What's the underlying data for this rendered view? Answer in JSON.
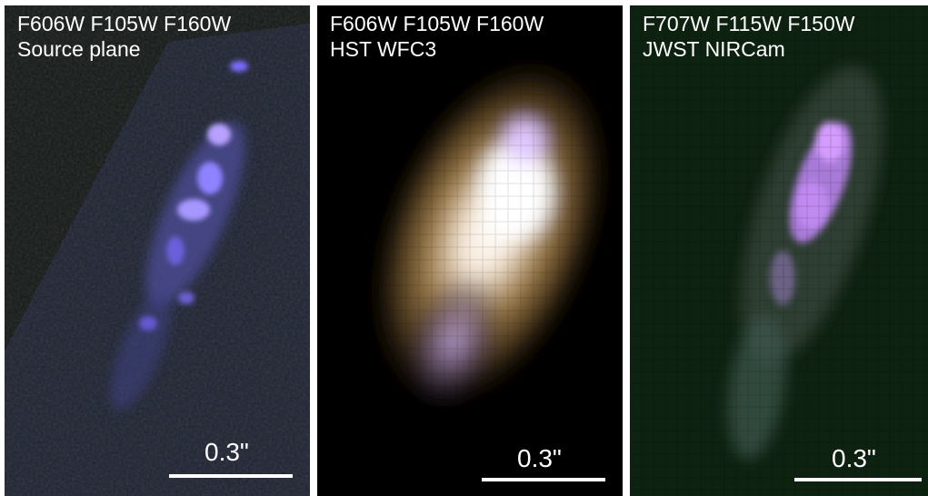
{
  "panels": [
    {
      "filters": "F606W F105W F160W",
      "subtitle": "Source plane",
      "scalebar": "0.3\"",
      "background": "#151a15"
    },
    {
      "filters": "F606W F105W F160W",
      "subtitle": "HST WFC3",
      "scalebar": "0.3\"",
      "background": "#000000"
    },
    {
      "filters": "F707W F115W F150W",
      "subtitle": "JWST NIRCam",
      "scalebar": "0.3\"",
      "background": "#0e2211"
    }
  ]
}
